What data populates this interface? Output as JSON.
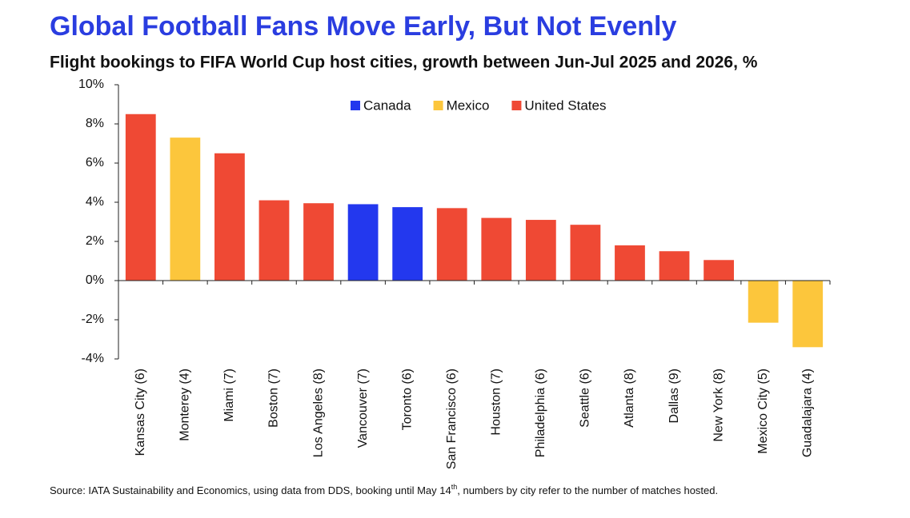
{
  "chart_data": {
    "type": "bar",
    "title": "Global Football Fans Move Early, But Not Evenly",
    "subtitle": "Flight bookings to FIFA World Cup host cities, growth between Jun-Jul 2025 and 2026, %",
    "source": {
      "prefix": "Source: IATA Sustainability and Economics, using data from DDS, booking until May 14",
      "superscript": "th",
      "suffix": ", numbers by city refer to the number of matches hosted."
    },
    "categories": [
      "Kansas City (6)",
      "Monterey (4)",
      "Miami (7)",
      "Boston (7)",
      "Los Angeles (8)",
      "Vancouver (7)",
      "Toronto (6)",
      "San Francisco (6)",
      "Houston (7)",
      "Philadelphia (6)",
      "Seattle (6)",
      "Atlanta (8)",
      "Dallas (9)",
      "New York (8)",
      "Mexico City (5)",
      "Guadalajara (4)"
    ],
    "series": [
      {
        "name": "Canada",
        "color": "#2338ee",
        "values": [
          null,
          null,
          null,
          null,
          null,
          3.9,
          3.75,
          null,
          null,
          null,
          null,
          null,
          null,
          null,
          null,
          null
        ]
      },
      {
        "name": "Mexico",
        "color": "#fcc63c",
        "values": [
          null,
          7.3,
          null,
          null,
          null,
          null,
          null,
          null,
          null,
          null,
          null,
          null,
          null,
          null,
          -2.15,
          -3.4
        ]
      },
      {
        "name": "United States",
        "color": "#ef4934",
        "values": [
          8.5,
          null,
          6.5,
          4.1,
          3.95,
          null,
          null,
          3.7,
          3.2,
          3.1,
          2.85,
          1.8,
          1.5,
          1.05,
          null,
          null
        ]
      }
    ],
    "ylim": [
      -4,
      10
    ],
    "yticks": [
      {
        "value": -4,
        "label": "-4%"
      },
      {
        "value": -2,
        "label": "-2%"
      },
      {
        "value": 0,
        "label": "0%"
      },
      {
        "value": 2,
        "label": "2%"
      },
      {
        "value": 4,
        "label": "4%"
      },
      {
        "value": 6,
        "label": "6%"
      },
      {
        "value": 8,
        "label": "8%"
      },
      {
        "value": 10,
        "label": "10%"
      }
    ],
    "legend": "top"
  }
}
